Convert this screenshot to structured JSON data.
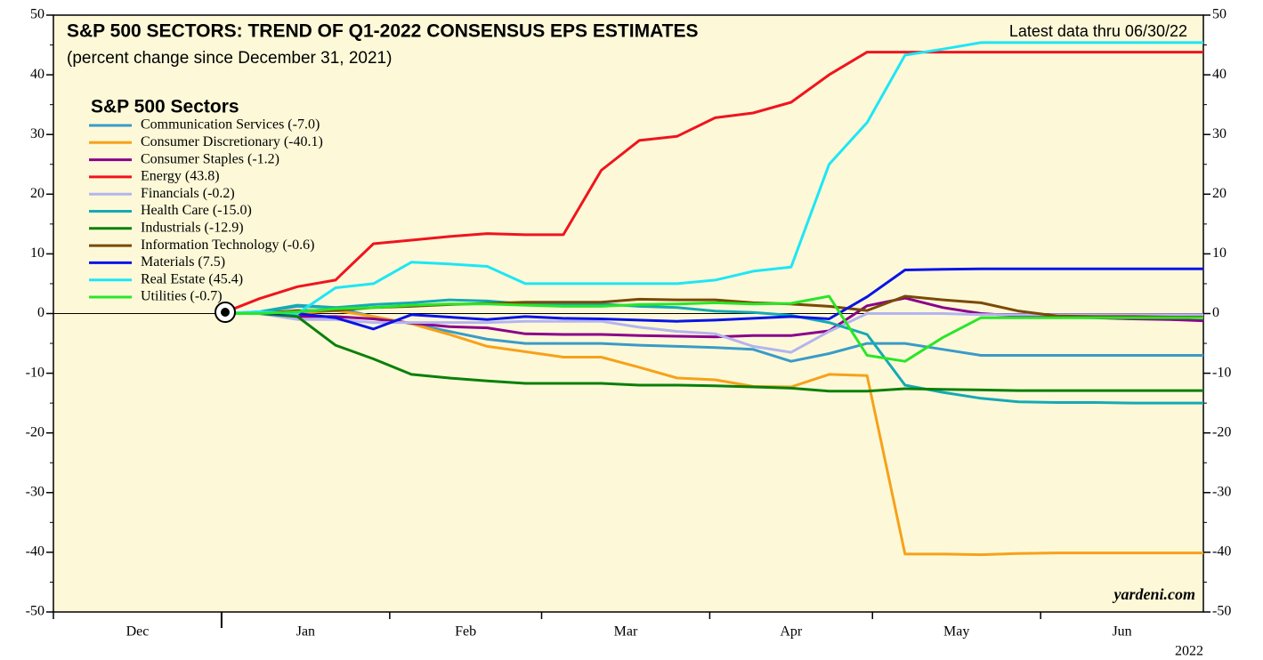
{
  "chart_data": {
    "type": "line",
    "title": "S&P 500 SECTORS: TREND OF Q1-2022 CONSENSUS EPS ESTIMATES",
    "subtitle": "(percent change since December 31, 2021)",
    "note": "Latest data thru 06/30/22",
    "source": "yardeni.com",
    "legend_title": "S&P 500 Sectors",
    "year_label": "2022",
    "legend": "upper left",
    "x": [
      0,
      7,
      14,
      21,
      28,
      35,
      42,
      49,
      56,
      63,
      70,
      77,
      84,
      91,
      98,
      105,
      112,
      119,
      126,
      133,
      140,
      147,
      154,
      161,
      168,
      175,
      181
    ],
    "xlim": [
      -31,
      181
    ],
    "xticks": [
      {
        "value": -31,
        "label": "Dec"
      },
      {
        "value": 0,
        "label": "Jan"
      },
      {
        "value": 31,
        "label": "Feb"
      },
      {
        "value": 59,
        "label": "Mar"
      },
      {
        "value": 90,
        "label": "Apr"
      },
      {
        "value": 120,
        "label": "May"
      },
      {
        "value": 151,
        "label": "Jun"
      }
    ],
    "ylim": [
      -50,
      50
    ],
    "yticks": [
      -50,
      -40,
      -30,
      -20,
      -10,
      0,
      10,
      20,
      30,
      40,
      50
    ],
    "series": [
      {
        "name": "Communication Services (-7.0)",
        "color": "#3a9bc8",
        "values": [
          0,
          0.2,
          1.2,
          1,
          -0.5,
          -1.7,
          -3,
          -4.3,
          -5,
          -5,
          -5,
          -5.3,
          -5.5,
          -5.7,
          -6,
          -8,
          -6.7,
          -5,
          -5,
          -6,
          -7,
          -7,
          -7,
          -7,
          -7,
          -7,
          -7
        ]
      },
      {
        "name": "Consumer Discretionary (-40.1)",
        "color": "#f7a11a",
        "values": [
          0,
          0,
          0,
          0.5,
          -0.5,
          -1.7,
          -3.5,
          -5.5,
          -6.4,
          -7.3,
          -7.3,
          -9,
          -10.8,
          -11.1,
          -12.2,
          -12.3,
          -10.2,
          -10.4,
          -40.3,
          -40.3,
          -40.4,
          -40.2,
          -40.1,
          -40.1,
          -40.1,
          -40.1,
          -40.1
        ]
      },
      {
        "name": "Consumer Staples (-1.2)",
        "color": "#8b008b",
        "values": [
          0,
          0,
          -0.5,
          -0.5,
          -0.9,
          -1.6,
          -2.2,
          -2.4,
          -3.4,
          -3.5,
          -3.5,
          -3.7,
          -3.8,
          -3.9,
          -3.7,
          -3.7,
          -2.9,
          1.3,
          2.6,
          1,
          0,
          -0.4,
          -0.6,
          -0.7,
          -0.9,
          -1,
          -1.2
        ]
      },
      {
        "name": "Energy (43.8)",
        "color": "#f0141e",
        "values": [
          0,
          2.5,
          4.5,
          5.6,
          11.7,
          12.3,
          12.9,
          13.4,
          13.2,
          13.2,
          24,
          29,
          29.7,
          32.8,
          33.6,
          35.4,
          40,
          43.8,
          43.8,
          43.8,
          43.8,
          43.8,
          43.8,
          43.8,
          43.8,
          43.8,
          43.8
        ]
      },
      {
        "name": "Financials (-0.2)",
        "color": "#b4b4f0",
        "values": [
          0,
          0,
          -1,
          -1,
          -1.5,
          -1.5,
          -1.5,
          -1.5,
          -1.3,
          -1.3,
          -1.3,
          -2.3,
          -3,
          -3.4,
          -5.5,
          -6.5,
          -3,
          0,
          0,
          0,
          -0.2,
          -0.2,
          -0.2,
          -0.2,
          -0.2,
          -0.2,
          -0.2
        ]
      },
      {
        "name": "Health Care (-15.0)",
        "color": "#14aab4",
        "values": [
          0,
          0.3,
          1.4,
          1,
          1.5,
          1.8,
          2.3,
          2.1,
          1.6,
          1.6,
          1.6,
          1.2,
          1,
          0.4,
          0.2,
          -0.3,
          -1.5,
          -3.5,
          -12,
          -13.2,
          -14.2,
          -14.8,
          -14.9,
          -14.9,
          -15,
          -15,
          -15
        ]
      },
      {
        "name": "Industrials (-12.9)",
        "color": "#0a800a",
        "values": [
          0,
          0,
          -0.5,
          -5.3,
          -7.6,
          -10.2,
          -10.8,
          -11.3,
          -11.7,
          -11.7,
          -11.7,
          -12,
          -12,
          -12.1,
          -12.3,
          -12.5,
          -13,
          -13,
          -12.6,
          -12.7,
          -12.8,
          -12.9,
          -12.9,
          -12.9,
          -12.9,
          -12.9,
          -12.9
        ]
      },
      {
        "name": "Information Technology (-0.6)",
        "color": "#7a4a05",
        "values": [
          0,
          0,
          0.5,
          0.5,
          1,
          1.2,
          1.5,
          1.7,
          1.9,
          1.9,
          1.9,
          2.4,
          2.3,
          2.3,
          1.8,
          1.6,
          1.2,
          0.5,
          2.9,
          2.3,
          1.8,
          0.4,
          -0.4,
          -0.5,
          -0.5,
          -0.6,
          -0.6
        ]
      },
      {
        "name": "Materials (7.5)",
        "color": "#0a14e6",
        "values": [
          0,
          0,
          0,
          -0.7,
          -2.6,
          -0.2,
          -0.6,
          -1,
          -0.5,
          -0.8,
          -0.9,
          -1.1,
          -1.3,
          -1.1,
          -0.8,
          -0.5,
          -0.9,
          2.8,
          7.3,
          7.4,
          7.5,
          7.5,
          7.5,
          7.5,
          7.5,
          7.5,
          7.5
        ]
      },
      {
        "name": "Real Estate (45.4)",
        "color": "#1ee6f5",
        "values": [
          0,
          0.3,
          0,
          4.3,
          5,
          8.6,
          8.3,
          7.9,
          5,
          5,
          5,
          5,
          5,
          5.6,
          7.1,
          7.8,
          25,
          32,
          43.3,
          44.3,
          45.4,
          45.4,
          45.4,
          45.4,
          45.4,
          45.4,
          45.4
        ]
      },
      {
        "name": "Utilities (-0.7)",
        "color": "#28e628",
        "values": [
          0,
          0,
          0.3,
          0.8,
          1,
          1.4,
          1.6,
          1.6,
          1.4,
          1.2,
          1.2,
          1.5,
          1.6,
          1.8,
          1.6,
          1.7,
          2.9,
          -7,
          -8,
          -4,
          -0.7,
          -0.7,
          -0.7,
          -0.7,
          -0.7,
          -0.7,
          -0.7
        ]
      }
    ]
  }
}
